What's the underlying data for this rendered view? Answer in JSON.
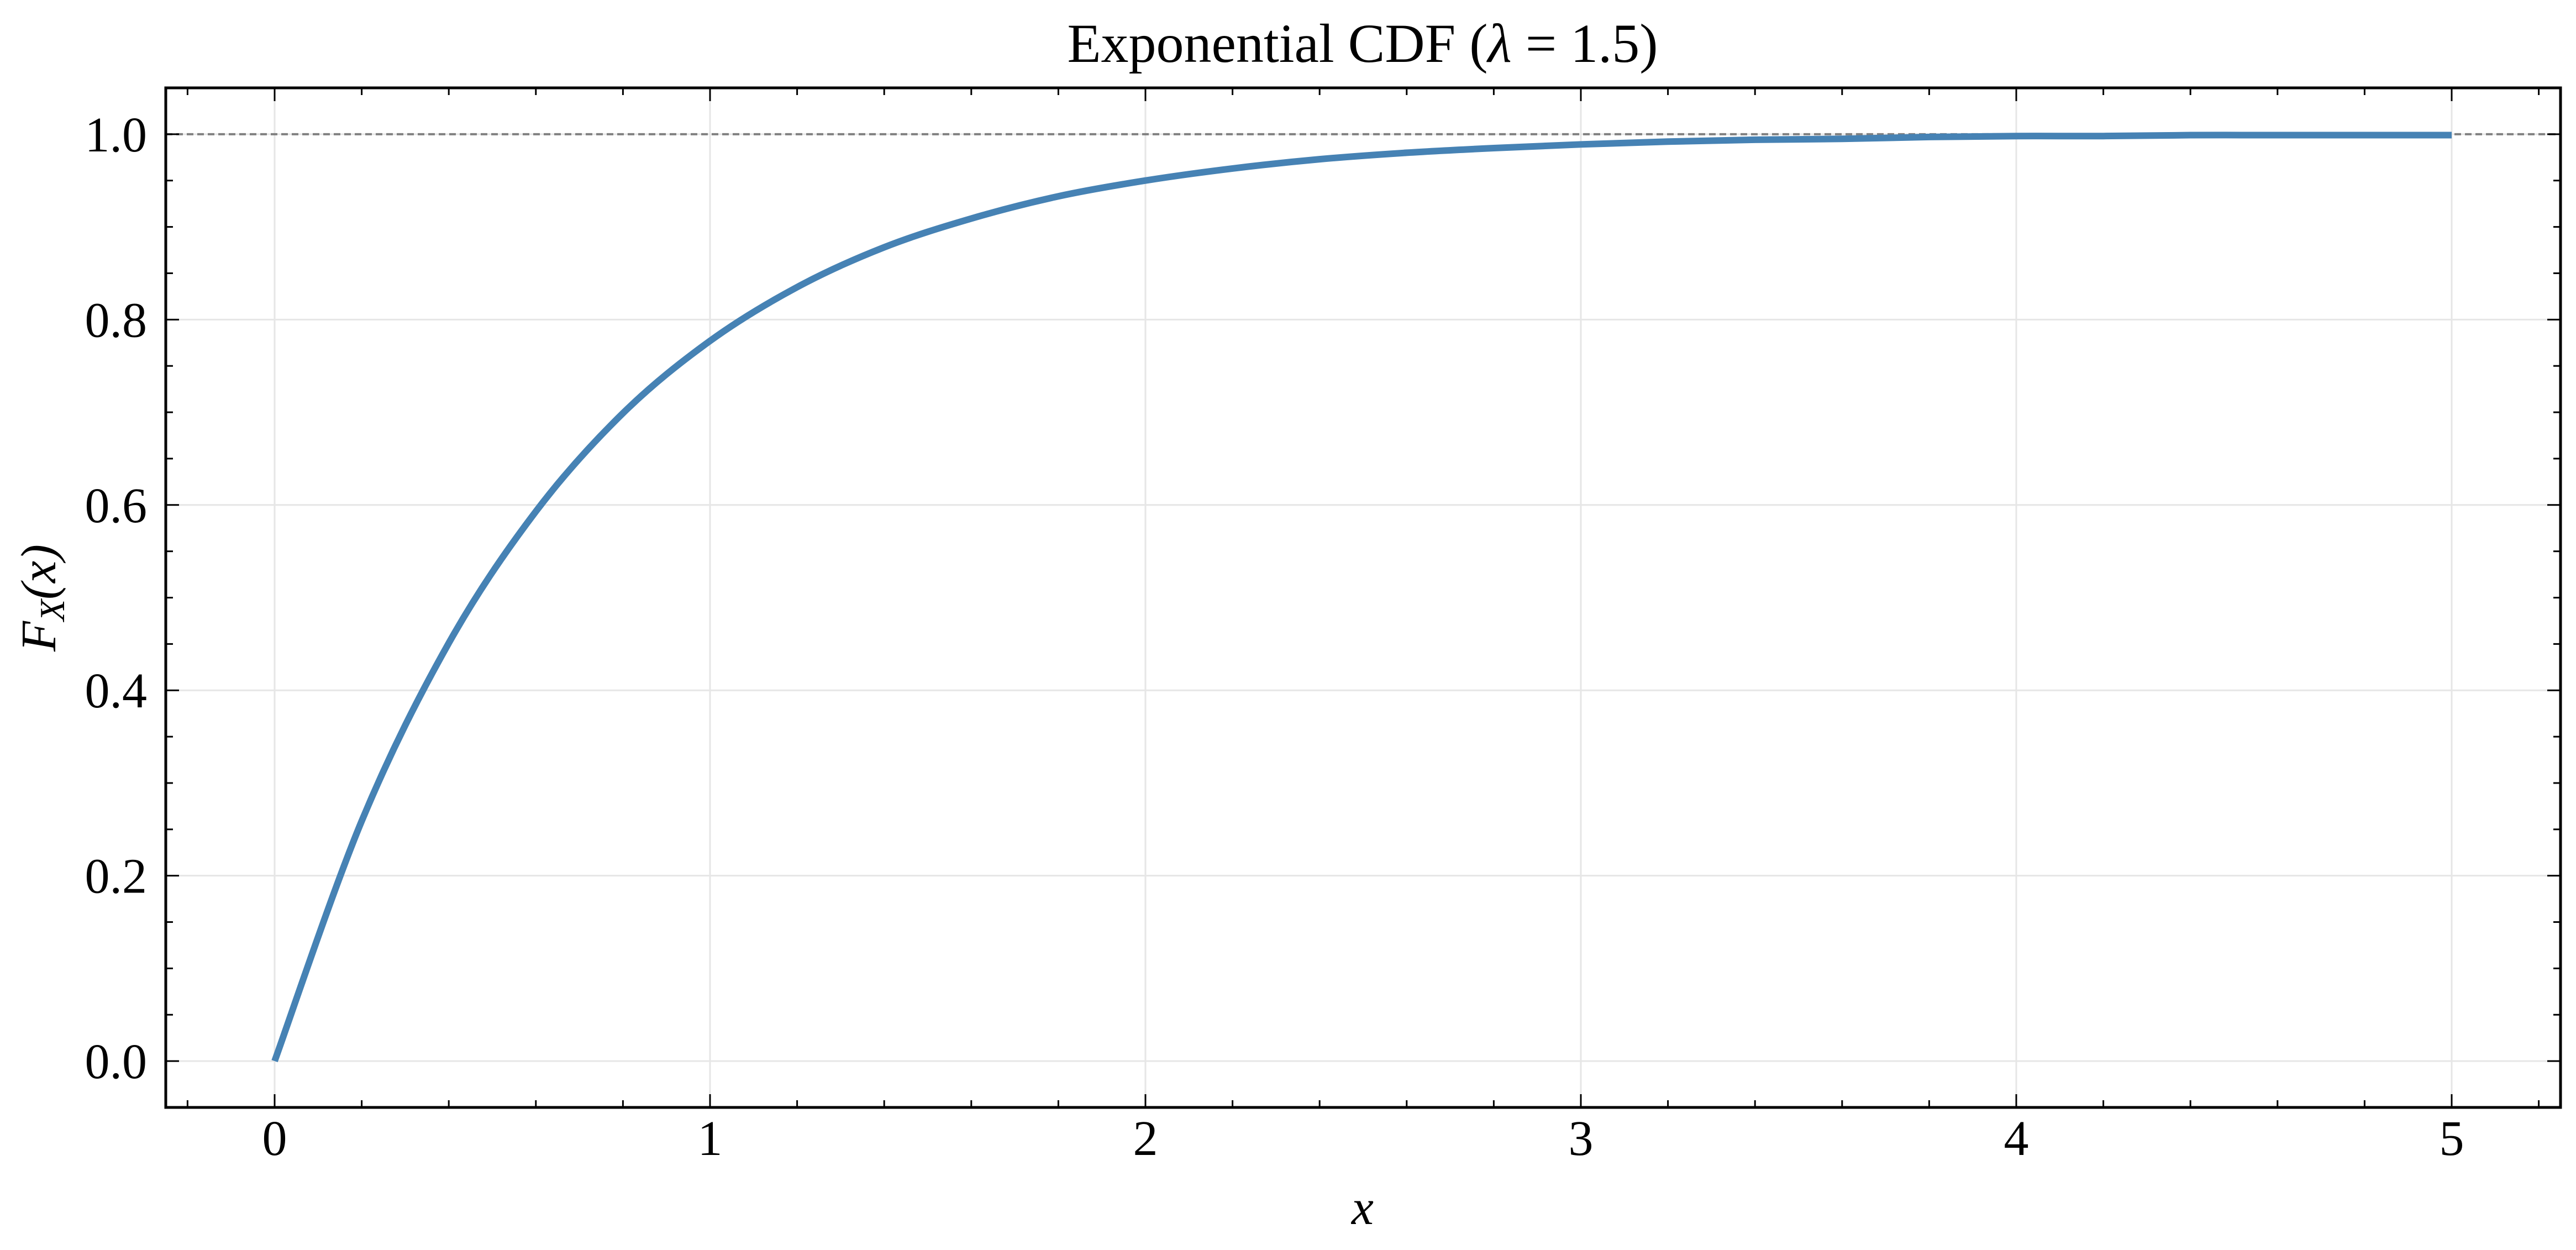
{
  "chart_data": {
    "type": "line",
    "title": {
      "prefix": "Exponential CDF (",
      "symbol": "λ",
      "suffix": " = 1.5)"
    },
    "xlabel": "x",
    "ylabel": {
      "main": "F",
      "sub": "X",
      "arg": "(x)"
    },
    "xlim": [
      -0.25,
      5.25
    ],
    "ylim": [
      -0.05,
      1.05
    ],
    "x_ticks": [
      0,
      1,
      2,
      3,
      4,
      5
    ],
    "x_tick_labels": [
      "0",
      "1",
      "2",
      "3",
      "4",
      "5"
    ],
    "y_ticks": [
      0.0,
      0.2,
      0.4,
      0.6,
      0.8,
      1.0
    ],
    "y_tick_labels": [
      "0.0",
      "0.2",
      "0.4",
      "0.6",
      "0.8",
      "1.0"
    ],
    "x_minor_step": 0.2,
    "y_minor_step": 0.05,
    "grid": true,
    "reference_line": {
      "y": 1.0,
      "style": "dashed",
      "color": "#808080"
    },
    "series": [
      {
        "color": "#4682b4",
        "x": [
          0,
          0.2,
          0.4,
          0.6,
          0.8,
          1.0,
          1.2,
          1.4,
          1.6,
          1.8,
          2.0,
          2.2,
          2.4,
          2.6,
          2.8,
          3.0,
          3.2,
          3.4,
          3.6,
          3.8,
          4.0,
          4.2,
          4.4,
          4.6,
          4.8,
          5.0
        ],
        "y": [
          0,
          0.259,
          0.451,
          0.593,
          0.699,
          0.777,
          0.835,
          0.878,
          0.909,
          0.933,
          0.95,
          0.963,
          0.973,
          0.98,
          0.985,
          0.989,
          0.992,
          0.994,
          0.995,
          0.997,
          0.998,
          0.998,
          0.999,
          0.999,
          0.999,
          0.999
        ]
      }
    ]
  }
}
